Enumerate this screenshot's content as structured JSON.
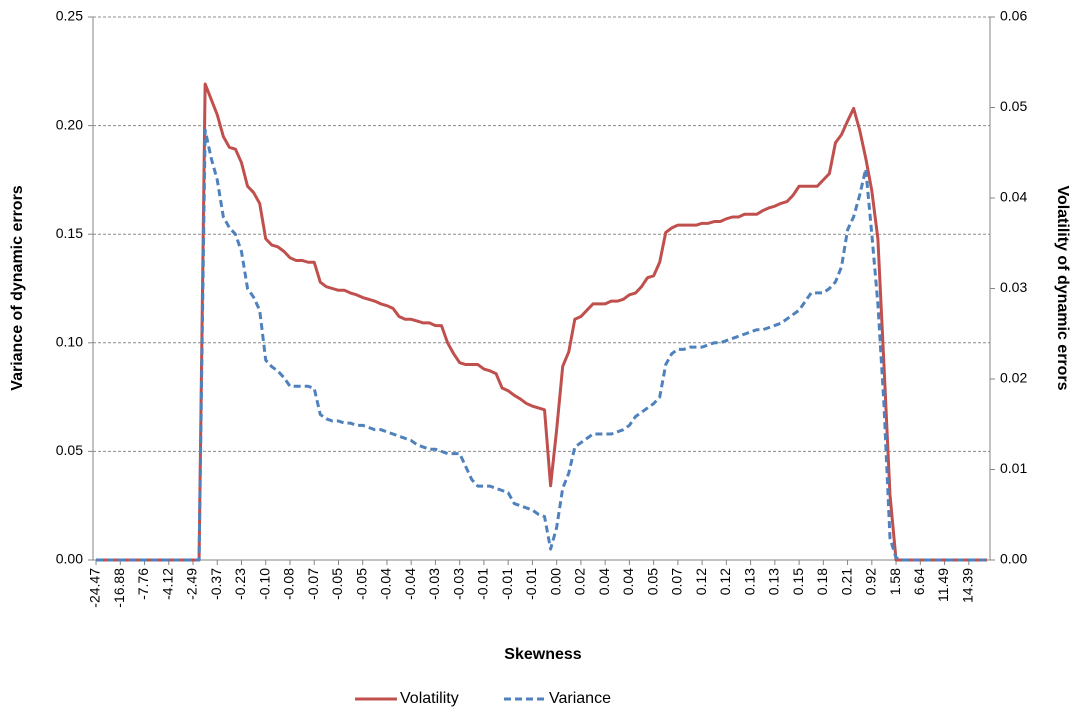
{
  "chart_data": {
    "type": "line",
    "x_label": "Skewness",
    "y_label": "Variance of dynamic errors",
    "y2_label": "Volatility of dynamic errors",
    "categories": [
      "-24.47",
      null,
      null,
      null,
      "-16.88",
      null,
      null,
      null,
      "-7.76",
      null,
      null,
      null,
      "-4.12",
      null,
      null,
      null,
      "-2.49",
      null,
      null,
      null,
      "-0.37",
      null,
      null,
      null,
      "-0.23",
      null,
      null,
      null,
      "-0.10",
      null,
      null,
      null,
      "-0.08",
      null,
      null,
      null,
      "-0.07",
      null,
      null,
      null,
      "-0.05",
      null,
      null,
      null,
      "-0.05",
      null,
      null,
      null,
      "-0.04",
      null,
      null,
      null,
      "-0.04",
      null,
      null,
      null,
      "-0.03",
      null,
      null,
      null,
      "-0.03",
      null,
      null,
      null,
      "-0.01",
      null,
      null,
      null,
      "-0.01",
      null,
      null,
      null,
      "-0.01",
      null,
      null,
      null,
      "0.00",
      null,
      null,
      null,
      "0.02",
      null,
      null,
      null,
      "0.04",
      null,
      null,
      null,
      "0.04",
      null,
      null,
      null,
      "0.05",
      null,
      null,
      null,
      "0.07",
      null,
      null,
      null,
      "0.12",
      null,
      null,
      null,
      "0.12",
      null,
      null,
      null,
      "0.13",
      null,
      null,
      null,
      "0.13",
      null,
      null,
      null,
      "0.15",
      null,
      null,
      null,
      "0.18",
      null,
      null,
      null,
      "0.21",
      null,
      null,
      null,
      "0.92",
      null,
      null,
      null,
      "1.58",
      null,
      null,
      null,
      "6.64",
      null,
      null,
      null,
      "11.49",
      null,
      null,
      null,
      "14.39",
      null,
      null,
      null
    ],
    "series": [
      {
        "name": "Volatility",
        "color": "#c0504d",
        "dash": "solid",
        "axis": "y2",
        "values": [
          0,
          0,
          0,
          0,
          0,
          0,
          0,
          0,
          0,
          0,
          0,
          0,
          0,
          0,
          0,
          0,
          0,
          0,
          0.0526,
          0.0509,
          0.0492,
          0.0468,
          0.0456,
          0.0454,
          0.0439,
          0.0413,
          0.0406,
          0.0394,
          0.0355,
          0.0348,
          0.0346,
          0.0341,
          0.0334,
          0.0331,
          0.0331,
          0.0329,
          0.0329,
          0.0307,
          0.0302,
          0.03,
          0.0298,
          0.0298,
          0.0295,
          0.0293,
          0.029,
          0.0288,
          0.0286,
          0.0283,
          0.0281,
          0.0278,
          0.0269,
          0.0266,
          0.0266,
          0.0264,
          0.0262,
          0.0262,
          0.0259,
          0.0259,
          0.024,
          0.0228,
          0.0218,
          0.0216,
          0.0216,
          0.0216,
          0.0211,
          0.0209,
          0.0206,
          0.019,
          0.0187,
          0.0182,
          0.0178,
          0.0173,
          0.017,
          0.0168,
          0.0166,
          0.0082,
          0.0144,
          0.0214,
          0.023,
          0.0266,
          0.0269,
          0.0276,
          0.0283,
          0.0283,
          0.0283,
          0.0286,
          0.0286,
          0.0288,
          0.0293,
          0.0295,
          0.0302,
          0.0312,
          0.0314,
          0.0329,
          0.0362,
          0.0367,
          0.037,
          0.037,
          0.037,
          0.037,
          0.0372,
          0.0372,
          0.0374,
          0.0374,
          0.0377,
          0.0379,
          0.0379,
          0.0382,
          0.0382,
          0.0382,
          0.0386,
          0.0389,
          0.0391,
          0.0394,
          0.0396,
          0.0403,
          0.0413,
          0.0413,
          0.0413,
          0.0413,
          0.042,
          0.0427,
          0.0461,
          0.047,
          0.0485,
          0.0499,
          0.0475,
          0.0444,
          0.0408,
          0.0355,
          0.0216,
          0.0072,
          0,
          0,
          0,
          0,
          0,
          0,
          0,
          0,
          0,
          0,
          0,
          0,
          0,
          0,
          0,
          0
        ]
      },
      {
        "name": "Variance",
        "color": "#4f81bd",
        "dash": "dashed",
        "axis": "y",
        "values": [
          0,
          0,
          0,
          0,
          0,
          0,
          0,
          0,
          0,
          0,
          0,
          0,
          0,
          0,
          0,
          0,
          0,
          0,
          0.198,
          0.185,
          0.175,
          0.158,
          0.153,
          0.15,
          0.142,
          0.125,
          0.121,
          0.115,
          0.092,
          0.089,
          0.087,
          0.084,
          0.08,
          0.08,
          0.08,
          0.08,
          0.079,
          0.067,
          0.065,
          0.064,
          0.064,
          0.063,
          0.063,
          0.062,
          0.062,
          0.061,
          0.06,
          0.06,
          0.059,
          0.058,
          0.057,
          0.056,
          0.055,
          0.053,
          0.052,
          0.051,
          0.051,
          0.05,
          0.049,
          0.049,
          0.049,
          0.043,
          0.037,
          0.034,
          0.034,
          0.034,
          0.033,
          0.032,
          0.031,
          0.026,
          0.025,
          0.024,
          0.023,
          0.021,
          0.02,
          0.005,
          0.015,
          0.033,
          0.04,
          0.052,
          0.054,
          0.056,
          0.058,
          0.058,
          0.058,
          0.058,
          0.059,
          0.06,
          0.062,
          0.066,
          0.068,
          0.07,
          0.072,
          0.075,
          0.09,
          0.095,
          0.097,
          0.097,
          0.098,
          0.098,
          0.098,
          0.099,
          0.1,
          0.1,
          0.101,
          0.102,
          0.103,
          0.104,
          0.105,
          0.106,
          0.106,
          0.107,
          0.108,
          0.109,
          0.111,
          0.113,
          0.115,
          0.119,
          0.123,
          0.123,
          0.123,
          0.125,
          0.128,
          0.135,
          0.152,
          0.158,
          0.168,
          0.18,
          0.15,
          0.118,
          0.072,
          0.01,
          0.001,
          0,
          0,
          0,
          0,
          0,
          0,
          0,
          0,
          0,
          0,
          0,
          0,
          0,
          0,
          0
        ]
      }
    ],
    "ylim": [
      0,
      0.25
    ],
    "yticks": [
      {
        "value": 0,
        "label": "0.00"
      },
      {
        "value": 0.05,
        "label": "0.05"
      },
      {
        "value": 0.1,
        "label": "0.10"
      },
      {
        "value": 0.15,
        "label": "0.15"
      },
      {
        "value": 0.2,
        "label": "0.20"
      },
      {
        "value": 0.25,
        "label": "0.25"
      }
    ],
    "y2lim": [
      0,
      0.06
    ],
    "y2ticks": [
      {
        "value": 0,
        "label": "0.00"
      },
      {
        "value": 0.01,
        "label": "0.01"
      },
      {
        "value": 0.02,
        "label": "0.02"
      },
      {
        "value": 0.03,
        "label": "0.03"
      },
      {
        "value": 0.04,
        "label": "0.04"
      },
      {
        "value": 0.05,
        "label": "0.05"
      },
      {
        "value": 0.06,
        "label": "0.06"
      }
    ],
    "grid": true,
    "legend": "bottom"
  }
}
